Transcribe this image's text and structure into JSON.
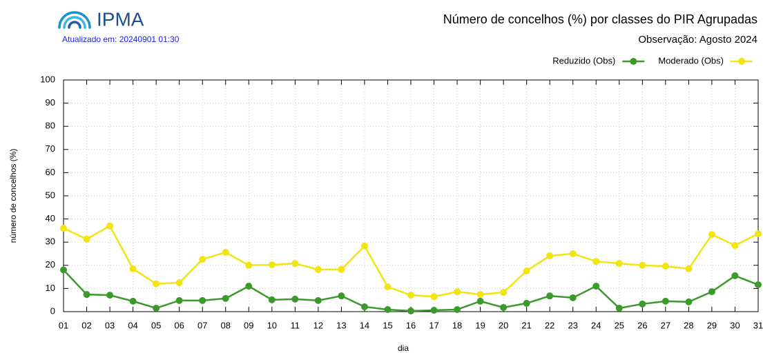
{
  "header": {
    "logo": "IPMA",
    "updated": "Atualizado em: 20240901 01:30"
  },
  "chart_data": {
    "type": "line",
    "title": "Número de concelhos (%) por classes do PIR Agrupadas",
    "subtitle": "Observação: Agosto 2024",
    "x_label": "dia",
    "y_label": "número de concelhos (%)",
    "categories": [
      "01",
      "02",
      "03",
      "04",
      "05",
      "06",
      "07",
      "08",
      "09",
      "10",
      "11",
      "12",
      "13",
      "14",
      "15",
      "16",
      "17",
      "18",
      "19",
      "20",
      "21",
      "22",
      "23",
      "24",
      "25",
      "26",
      "27",
      "28",
      "29",
      "30",
      "31"
    ],
    "series": [
      {
        "name": "Reduzido (Obs)",
        "color": "#3c9a2c",
        "values": [
          18,
          7.4,
          7.1,
          4.5,
          1.5,
          4.8,
          4.8,
          5.7,
          11,
          5.1,
          5.4,
          4.8,
          6.8,
          2.1,
          0.9,
          0.3,
          0.6,
          0.9,
          4.5,
          1.8,
          3.6,
          6.8,
          6,
          11,
          1.5,
          3.3,
          4.5,
          4.2,
          8.6,
          15.5,
          11.6
        ]
      },
      {
        "name": "Moderado (Obs)",
        "color": "#f2e40f",
        "values": [
          36,
          31.3,
          37,
          18.5,
          12,
          12.5,
          22.6,
          25.6,
          20,
          20.2,
          20.8,
          18.2,
          18.2,
          28.3,
          10.7,
          7.1,
          6.5,
          8.6,
          7.4,
          8.3,
          17.6,
          24.1,
          25,
          21.7,
          20.8,
          20,
          19.6,
          18.5,
          33.3,
          28.6,
          33.6
        ]
      }
    ],
    "ylim": [
      0,
      100
    ],
    "yticks": [
      0,
      10,
      20,
      30,
      40,
      50,
      60,
      70,
      80,
      90,
      100
    ],
    "grid": true,
    "legend": "top-right"
  }
}
